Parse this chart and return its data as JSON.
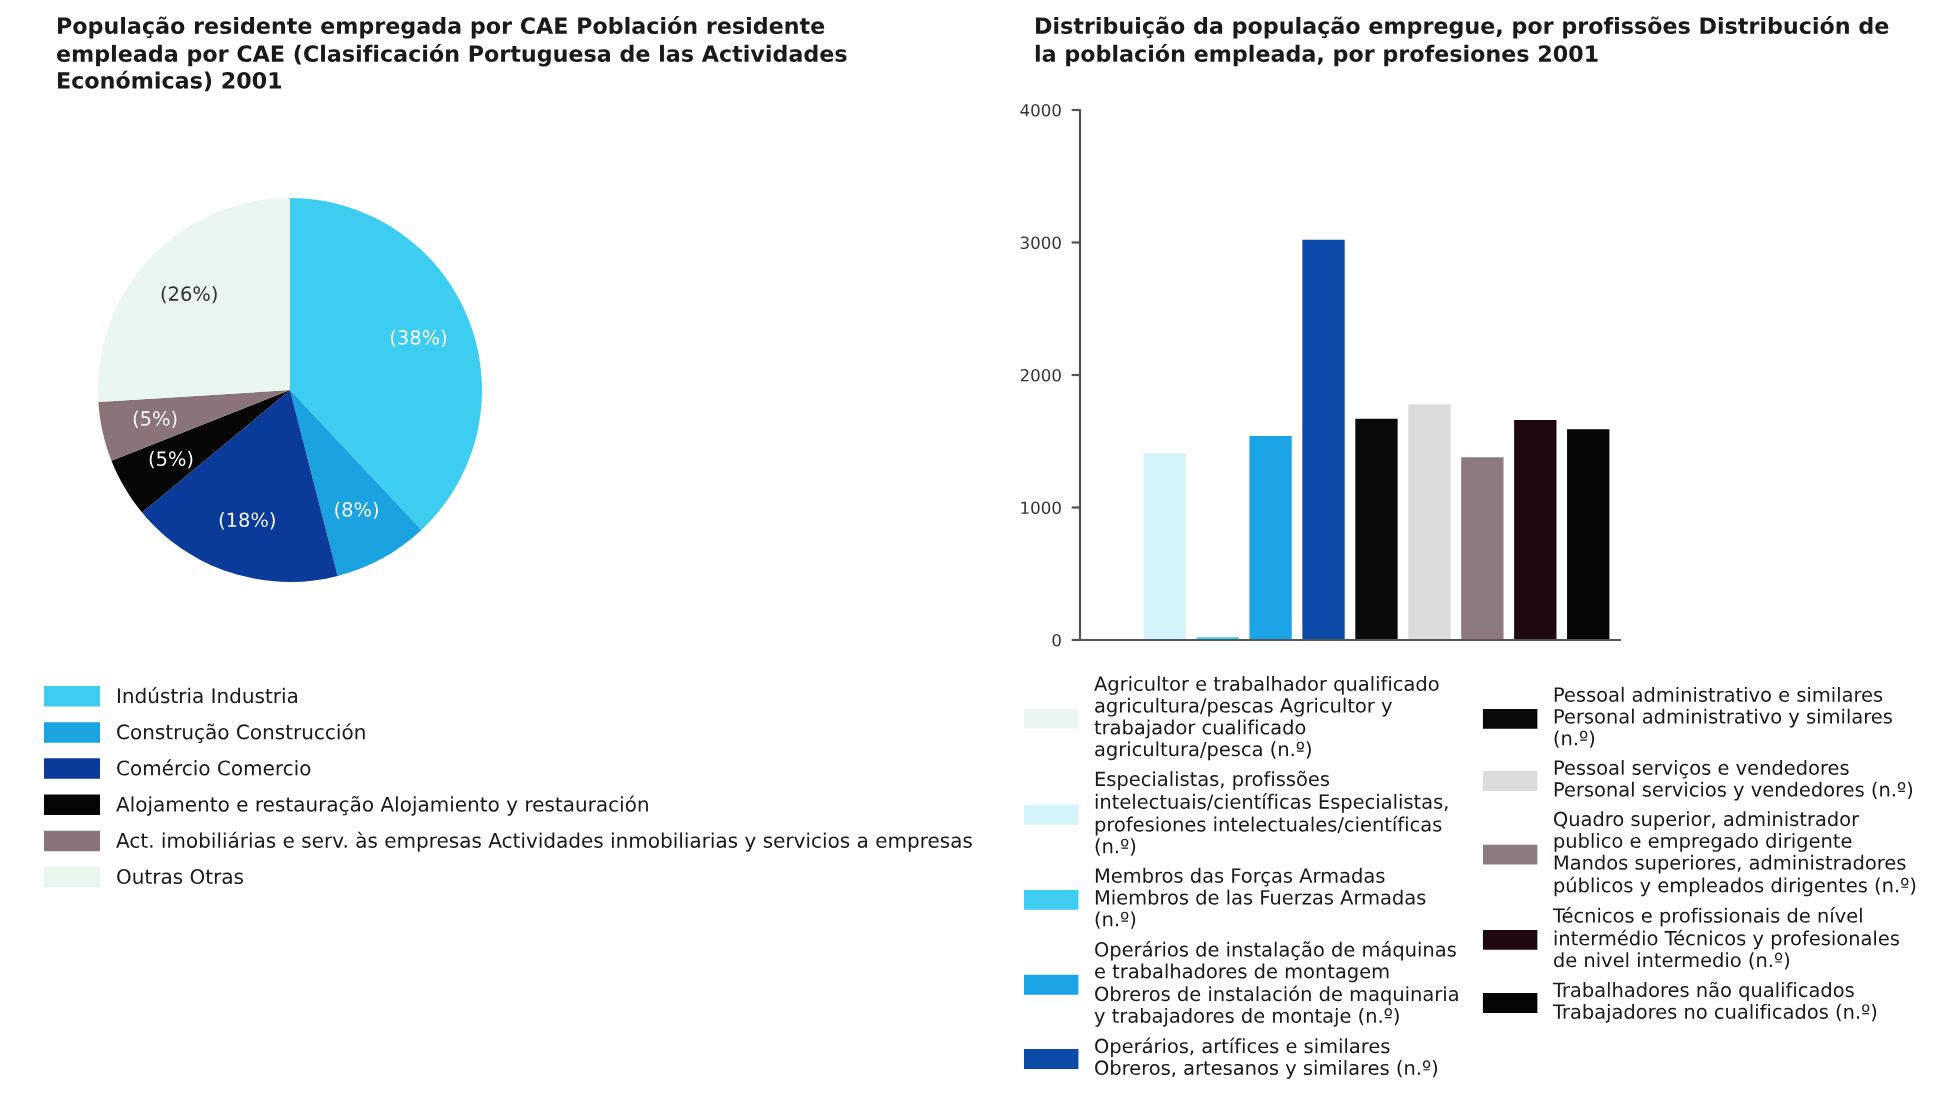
{
  "chart_data": [
    {
      "type": "pie",
      "title": "População residente empregada por CAE Población residente empleada por CAE (Clasificación Portuguesa de las Actividades Económicas) 2001",
      "categories": [
        "Indústria Industria",
        "Construção Construcción",
        "Comércio Comercio",
        "Alojamento e restauração Alojamiento y restauración",
        "Act. imobiliárias e serv. às empresas Actividades inmobiliarias y servicios a empresas",
        "Outras Otras"
      ],
      "values": [
        38,
        8,
        18,
        5,
        5,
        26
      ],
      "value_labels": [
        "(38%)",
        "(8%)",
        "(18%)",
        "(5%)",
        "(5%)",
        "(26%)"
      ],
      "colors": [
        "#3ccdf0",
        "#1aa3e0",
        "#0a3a9a",
        "#050505",
        "#8a7478",
        "#eaf7ee"
      ],
      "legend": "bottom"
    },
    {
      "type": "bar",
      "title": "Distribuição da população empregue, por profissões Distribución de la población empleada, por profesiones 2001",
      "categories": [
        null,
        null,
        null,
        null,
        null,
        null,
        null,
        null,
        null,
        null
      ],
      "series": [
        {
          "name": "Agricultor e trabalhador qualificado agricultura/pescas Agricultor y trabajador cualificado agricultura/pesca (n.º)",
          "color": "#eaf7ee",
          "values": [
            0,
            null,
            null,
            null,
            null,
            null,
            null,
            null,
            null,
            null
          ]
        },
        {
          "name": "Especialistas, profissões intelectuais/científicas Especialistas, profesiones intelectuales/científicas (n.º)",
          "color": "#d3f4fa",
          "values": [
            null,
            1410,
            null,
            null,
            null,
            null,
            null,
            null,
            null,
            null
          ]
        },
        {
          "name": "Membros das Forças Armadas Miembros de las Fuerzas Armadas (n.º)",
          "color": "#3ccdf0",
          "values": [
            null,
            null,
            20,
            null,
            null,
            null,
            null,
            null,
            null,
            null
          ]
        },
        {
          "name": "Operários de instalação de máquinas e trabalhadores de montagem Obreros de instalación de maquinaria y trabajadores de montaje (n.º)",
          "color": "#1ba5e6",
          "values": [
            null,
            null,
            null,
            1540,
            null,
            null,
            null,
            null,
            null,
            null
          ]
        },
        {
          "name": "Operários, artífices e similares Obreros, artesanos y similares (n.º)",
          "color": "#0b4aa8",
          "values": [
            null,
            null,
            null,
            null,
            3020,
            null,
            null,
            null,
            null,
            null
          ]
        },
        {
          "name": "Pessoal administrativo e similares Personal administrativo y similares (n.º)",
          "color": "#0a0a0a",
          "values": [
            null,
            null,
            null,
            null,
            null,
            1670,
            null,
            null,
            null,
            null
          ]
        },
        {
          "name": "Pessoal serviços e vendedores Personal servicios y vendedores (n.º)",
          "color": "#dcdcdc",
          "values": [
            null,
            null,
            null,
            null,
            null,
            null,
            1780,
            null,
            null,
            null
          ]
        },
        {
          "name": "Quadro superior, administrador publico e empregado dirigente Mandos superiores, administradores públicos y empleados dirigentes (n.º)",
          "color": "#8c7a80",
          "values": [
            null,
            null,
            null,
            null,
            null,
            null,
            null,
            1380,
            null,
            null
          ]
        },
        {
          "name": "Técnicos e profissionais de nível intermédio Técnicos y profesionales de nivel intermedio (n.º)",
          "color": "#1e0a0e",
          "values": [
            null,
            null,
            null,
            null,
            null,
            null,
            null,
            null,
            1660,
            null
          ]
        },
        {
          "name": "Trabalhadores não qualificados Trabajadores no cualificados (n.º)",
          "color": "#050505",
          "values": [
            null,
            null,
            null,
            null,
            null,
            null,
            null,
            null,
            null,
            1590
          ]
        }
      ],
      "ylim": [
        0,
        4000
      ],
      "yticks": [
        0,
        1000,
        2000,
        3000,
        4000
      ],
      "tick_labels": "y",
      "legend": "bottom"
    }
  ]
}
